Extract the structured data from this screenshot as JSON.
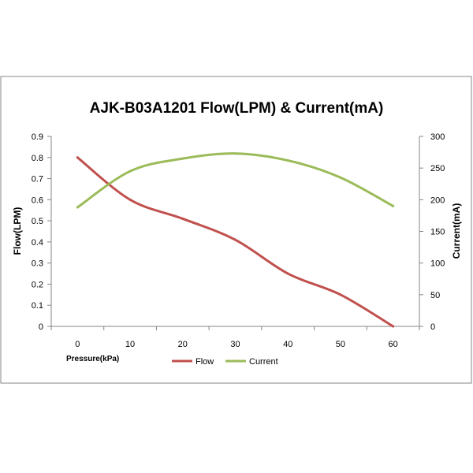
{
  "chart_data": {
    "type": "line",
    "title": "AJK-B03A1201 Flow(LPM) & Current(mA)",
    "xlabel": "Pressure(kPa)",
    "ylabel": "Flow(LPM)",
    "y2label": "Current(mA)",
    "x": [
      0,
      10,
      20,
      30,
      40,
      50,
      60
    ],
    "xticks": [
      "0",
      "10",
      "20",
      "30",
      "40",
      "50",
      "60"
    ],
    "xlim": [
      -5,
      65
    ],
    "ylim": [
      0,
      0.9
    ],
    "y2lim": [
      0,
      300
    ],
    "yticks": [
      "0",
      "0.1",
      "0.2",
      "0.3",
      "0.4",
      "0.5",
      "0.6",
      "0.7",
      "0.8",
      "0.9"
    ],
    "y2ticks": [
      "0",
      "50",
      "100",
      "150",
      "200",
      "250",
      "300"
    ],
    "grid": false,
    "legend_position": "bottom",
    "series": [
      {
        "name": "Flow",
        "axis": "left",
        "color": "#c0504d",
        "values": [
          0.8,
          0.6,
          0.51,
          0.41,
          0.25,
          0.15,
          0.0
        ]
      },
      {
        "name": "Current",
        "axis": "right",
        "color": "#9bbb59",
        "values": [
          188,
          245,
          265,
          273,
          262,
          235,
          190
        ]
      }
    ]
  }
}
